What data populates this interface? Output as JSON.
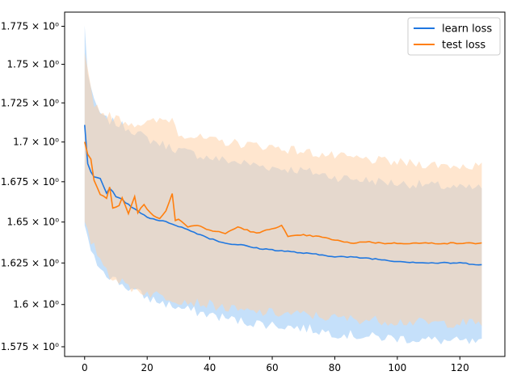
{
  "chart_data": {
    "type": "line",
    "title": "",
    "xlabel": "",
    "ylabel": "",
    "xlim": [
      -6.4,
      134.4
    ],
    "ylim": [
      1.5693,
      1.7844
    ],
    "y_scale": "log",
    "grid": false,
    "legend_position": "top-right",
    "x_ticks": [
      0,
      20,
      40,
      60,
      80,
      100,
      120
    ],
    "x_tick_labels": [
      "0",
      "20",
      "40",
      "60",
      "80",
      "100",
      "120"
    ],
    "y_ticks": [
      1.575,
      1.6,
      1.625,
      1.65,
      1.675,
      1.7,
      1.725,
      1.75,
      1.775
    ],
    "y_tick_labels": [
      "1.575 × 10⁰",
      "1.6 × 10⁰",
      "1.625 × 10⁰",
      "1.65 × 10⁰",
      "1.675 × 10⁰",
      "1.7 × 10⁰",
      "1.725 × 10⁰",
      "1.75 × 10⁰",
      "1.775 × 10⁰"
    ],
    "series": [
      {
        "name": "learn loss",
        "color": "#1f77e0",
        "band_color": "#9ecbf7",
        "mean_keypoints": [
          [
            0,
            1.711
          ],
          [
            1,
            1.686
          ],
          [
            2,
            1.681
          ],
          [
            3,
            1.678
          ],
          [
            5,
            1.677
          ],
          [
            7,
            1.668
          ],
          [
            8,
            1.671
          ],
          [
            10,
            1.666
          ],
          [
            12,
            1.664
          ],
          [
            15,
            1.659
          ],
          [
            17,
            1.657
          ],
          [
            20,
            1.653
          ],
          [
            24,
            1.651
          ],
          [
            28,
            1.649
          ],
          [
            32,
            1.646
          ],
          [
            36,
            1.643
          ],
          [
            40,
            1.64
          ],
          [
            45,
            1.637
          ],
          [
            50,
            1.636
          ],
          [
            55,
            1.634
          ],
          [
            60,
            1.633
          ],
          [
            65,
            1.632
          ],
          [
            70,
            1.631
          ],
          [
            80,
            1.629
          ],
          [
            90,
            1.628
          ],
          [
            100,
            1.626
          ],
          [
            110,
            1.625
          ],
          [
            120,
            1.625
          ],
          [
            127,
            1.624
          ]
        ],
        "upper_keypoints": [
          [
            0,
            1.775
          ],
          [
            1,
            1.745
          ],
          [
            3,
            1.725
          ],
          [
            6,
            1.715
          ],
          [
            10,
            1.712
          ],
          [
            15,
            1.708
          ],
          [
            20,
            1.702
          ],
          [
            30,
            1.695
          ],
          [
            40,
            1.69
          ],
          [
            50,
            1.687
          ],
          [
            60,
            1.684
          ],
          [
            70,
            1.682
          ],
          [
            80,
            1.678
          ],
          [
            90,
            1.676
          ],
          [
            100,
            1.674
          ],
          [
            110,
            1.673
          ],
          [
            120,
            1.671
          ],
          [
            127,
            1.671
          ]
        ],
        "lower_keypoints": [
          [
            0,
            1.649
          ],
          [
            2,
            1.63
          ],
          [
            5,
            1.623
          ],
          [
            8,
            1.617
          ],
          [
            12,
            1.612
          ],
          [
            15,
            1.609
          ],
          [
            20,
            1.604
          ],
          [
            30,
            1.598
          ],
          [
            40,
            1.594
          ],
          [
            50,
            1.59
          ],
          [
            60,
            1.588
          ],
          [
            70,
            1.586
          ],
          [
            80,
            1.583
          ],
          [
            90,
            1.581
          ],
          [
            100,
            1.58
          ],
          [
            110,
            1.579
          ],
          [
            120,
            1.578
          ],
          [
            127,
            1.577
          ]
        ]
      },
      {
        "name": "test loss",
        "color": "#ff7f0e",
        "band_color": "#ffd2a8",
        "mean_keypoints": [
          [
            0,
            1.7
          ],
          [
            1,
            1.692
          ],
          [
            2,
            1.689
          ],
          [
            3,
            1.676
          ],
          [
            5,
            1.667
          ],
          [
            7,
            1.665
          ],
          [
            8,
            1.672
          ],
          [
            9,
            1.659
          ],
          [
            11,
            1.66
          ],
          [
            12,
            1.665
          ],
          [
            14,
            1.655
          ],
          [
            16,
            1.666
          ],
          [
            17,
            1.656
          ],
          [
            19,
            1.661
          ],
          [
            20,
            1.658
          ],
          [
            22,
            1.654
          ],
          [
            24,
            1.652
          ],
          [
            26,
            1.657
          ],
          [
            28,
            1.668
          ],
          [
            29,
            1.651
          ],
          [
            30,
            1.652
          ],
          [
            33,
            1.647
          ],
          [
            36,
            1.648
          ],
          [
            40,
            1.645
          ],
          [
            45,
            1.643
          ],
          [
            49,
            1.647
          ],
          [
            55,
            1.643
          ],
          [
            60,
            1.646
          ],
          [
            63,
            1.648
          ],
          [
            65,
            1.641
          ],
          [
            70,
            1.642
          ],
          [
            75,
            1.641
          ],
          [
            80,
            1.639
          ],
          [
            85,
            1.637
          ],
          [
            90,
            1.638
          ],
          [
            95,
            1.637
          ],
          [
            100,
            1.637
          ],
          [
            110,
            1.637
          ],
          [
            120,
            1.637
          ],
          [
            127,
            1.637
          ]
        ],
        "upper_keypoints": [
          [
            0,
            1.755
          ],
          [
            1,
            1.745
          ],
          [
            3,
            1.725
          ],
          [
            6,
            1.718
          ],
          [
            10,
            1.715
          ],
          [
            15,
            1.712
          ],
          [
            20,
            1.712
          ],
          [
            28,
            1.715
          ],
          [
            30,
            1.706
          ],
          [
            40,
            1.701
          ],
          [
            50,
            1.699
          ],
          [
            60,
            1.697
          ],
          [
            70,
            1.694
          ],
          [
            80,
            1.691
          ],
          [
            90,
            1.689
          ],
          [
            100,
            1.687
          ],
          [
            110,
            1.686
          ],
          [
            120,
            1.685
          ],
          [
            127,
            1.685
          ]
        ],
        "lower_keypoints": [
          [
            0,
            1.648
          ],
          [
            2,
            1.638
          ],
          [
            5,
            1.628
          ],
          [
            8,
            1.618
          ],
          [
            12,
            1.613
          ],
          [
            15,
            1.61
          ],
          [
            20,
            1.607
          ],
          [
            30,
            1.603
          ],
          [
            40,
            1.6
          ],
          [
            50,
            1.596
          ],
          [
            60,
            1.595
          ],
          [
            70,
            1.594
          ],
          [
            80,
            1.592
          ],
          [
            90,
            1.591
          ],
          [
            100,
            1.59
          ],
          [
            110,
            1.589
          ],
          [
            120,
            1.589
          ],
          [
            127,
            1.589
          ]
        ]
      }
    ]
  }
}
